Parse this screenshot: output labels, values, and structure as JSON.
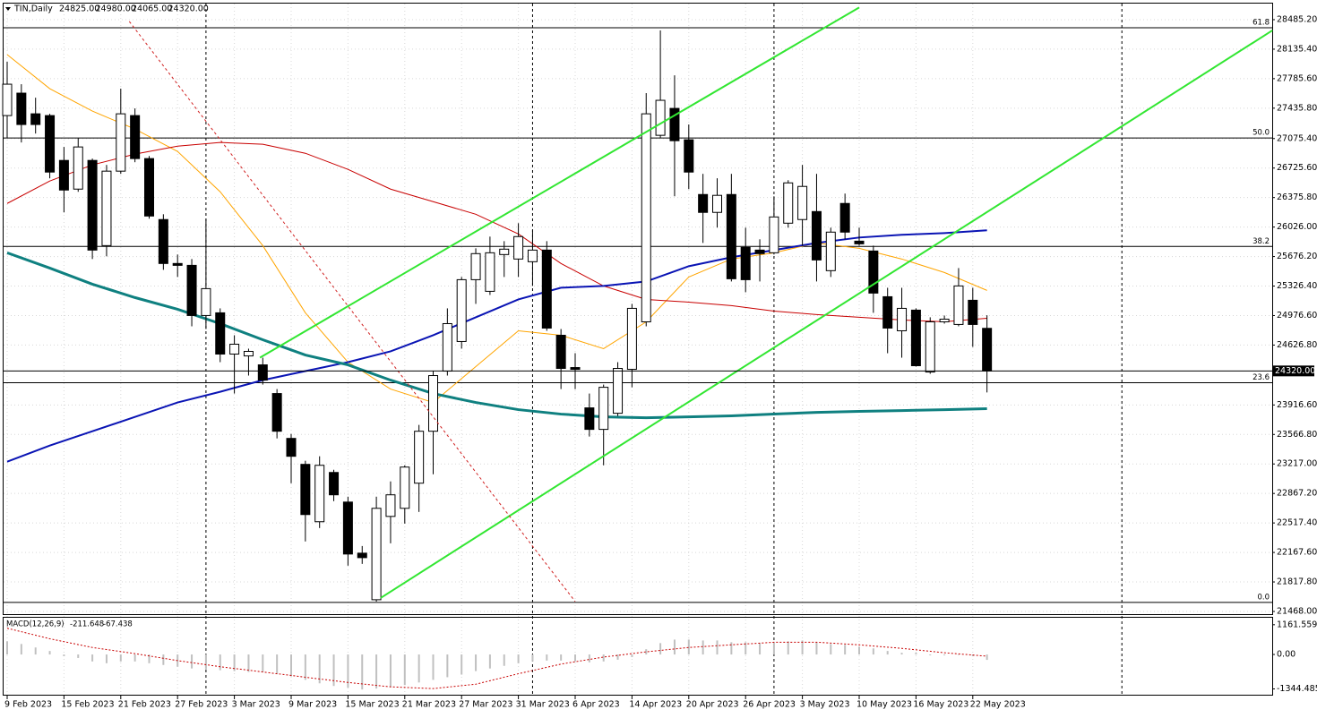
{
  "chart_data": [
    {
      "type": "candlestick",
      "symbol": "TIN,Daily",
      "header_values": [
        {
          "value": 24825,
          "label": "24825.00"
        },
        {
          "value": 24980,
          "label": "24980.00"
        },
        {
          "value": 24065,
          "label": "24065.00"
        },
        {
          "value": 24320,
          "label": "24320.00"
        }
      ],
      "categories": [
        "9 Feb 2023",
        null,
        null,
        null,
        "15 Feb 2023",
        null,
        null,
        null,
        "21 Feb 2023",
        null,
        null,
        null,
        "27 Feb 2023",
        null,
        null,
        null,
        "3 Mar 2023",
        null,
        null,
        null,
        "9 Mar 2023",
        null,
        null,
        null,
        "15 Mar 2023",
        null,
        null,
        null,
        "21 Mar 2023",
        null,
        null,
        null,
        "27 Mar 2023",
        null,
        null,
        null,
        "31 Mar 2023",
        null,
        null,
        null,
        "6 Apr 2023",
        null,
        null,
        null,
        "14 Apr 2023",
        null,
        null,
        null,
        "20 Apr 2023",
        null,
        null,
        null,
        "26 Apr 2023",
        null,
        null,
        null,
        "3 May 2023",
        null,
        null,
        null,
        "10 May 2023",
        null,
        null,
        null,
        "16 May 2023",
        null,
        null,
        null,
        "22 May 2023",
        null
      ],
      "open": [
        27348,
        27614,
        27369,
        27348,
        26816,
        26476,
        26816,
        25806,
        26689,
        27348,
        26838,
        26115,
        25594,
        25572,
        24977,
        25009,
        24520,
        24498,
        24392,
        24052,
        23520,
        23212,
        22532,
        23116,
        22765,
        22159,
        21607,
        22595,
        22691,
        22989,
        23605,
        24318,
        24669,
        25402,
        25264,
        25700,
        25647,
        25615,
        25753,
        24743,
        24360,
        23882,
        23627,
        23818,
        24339,
        24902,
        27114,
        27433,
        27061,
        26412,
        26200,
        26412,
        25785,
        25753,
        25721,
        26072,
        26115,
        26210,
        25509,
        26306,
        25859,
        25742,
        25200,
        24796,
        25041,
        24307,
        24902,
        24871,
        25158,
        24825
      ],
      "high": [
        27986,
        27720,
        27560,
        27369,
        26976,
        27082,
        26838,
        26763,
        27667,
        27433,
        26869,
        26178,
        25700,
        25647,
        26125,
        25062,
        24743,
        24584,
        24477,
        24105,
        23573,
        23255,
        23308,
        23148,
        22829,
        22244,
        22829,
        23010,
        23201,
        23680,
        24318,
        25062,
        25434,
        25774,
        25913,
        25859,
        26072,
        25987,
        25859,
        24817,
        24530,
        24052,
        24158,
        24424,
        25115,
        27614,
        28358,
        27826,
        27242,
        26657,
        26604,
        26657,
        26019,
        25881,
        26391,
        26582,
        26763,
        26657,
        26019,
        26423,
        26019,
        25806,
        25306,
        25306,
        25062,
        24956,
        24977,
        25540,
        25306,
        24980
      ],
      "low": [
        27082,
        27029,
        27135,
        26604,
        26200,
        26444,
        25647,
        25679,
        26657,
        26795,
        26125,
        25519,
        25434,
        24849,
        24817,
        24424,
        24052,
        24265,
        24158,
        23520,
        22989,
        22298,
        22457,
        22776,
        22011,
        22032,
        21585,
        22276,
        22510,
        22648,
        23095,
        24265,
        24584,
        25115,
        25221,
        25434,
        25434,
        25328,
        24796,
        24105,
        24105,
        23542,
        23201,
        23786,
        24126,
        24849,
        27082,
        26391,
        26476,
        25838,
        26019,
        25381,
        25253,
        25381,
        25700,
        26019,
        25806,
        25381,
        25434,
        25881,
        25806,
        25009,
        24530,
        24477,
        24371,
        24286,
        24881,
        24849,
        24605,
        24065
      ],
      "close": [
        27720,
        27242,
        27242,
        26678,
        26465,
        26976,
        25753,
        26689,
        27369,
        26838,
        26157,
        25594,
        25572,
        24977,
        25296,
        24520,
        24637,
        24552,
        24211,
        23605,
        23308,
        22617,
        23201,
        22851,
        22149,
        22106,
        22691,
        22851,
        23180,
        23605,
        24265,
        24881,
        25402,
        25711,
        25721,
        25764,
        25913,
        25753,
        24828,
        24350,
        24339,
        23627,
        24126,
        24350,
        25062,
        27369,
        27529,
        27050,
        26678,
        26200,
        26402,
        25413,
        25402,
        25711,
        26146,
        26550,
        26508,
        25636,
        25966,
        25966,
        25827,
        25243,
        24828,
        25062,
        24382,
        24902,
        24934,
        25328,
        24871,
        24320
      ],
      "overlays": [
        {
          "color": "#ffa500",
          "width": 1,
          "x": [
            0,
            3,
            6,
            9,
            12,
            15,
            18,
            21,
            24,
            27,
            30,
            33,
            36,
            39,
            42,
            45,
            48,
            51,
            54,
            57,
            60,
            63,
            66,
            69
          ],
          "values": [
            28071,
            27667,
            27401,
            27188,
            26923,
            26444,
            25806,
            25009,
            24424,
            24105,
            23946,
            24371,
            24796,
            24743,
            24584,
            24902,
            25434,
            25647,
            25721,
            25838,
            25774,
            25647,
            25487,
            25275
          ]
        },
        {
          "color": "#c80000",
          "width": 1,
          "x": [
            0,
            3,
            6,
            9,
            12,
            15,
            18,
            21,
            24,
            27,
            30,
            33,
            36,
            39,
            42,
            45,
            48,
            51,
            54,
            57,
            60,
            63,
            66,
            69
          ],
          "values": [
            26306,
            26572,
            26763,
            26891,
            26986,
            27029,
            27008,
            26901,
            26710,
            26476,
            26327,
            26178,
            25944,
            25594,
            25328,
            25168,
            25136,
            25094,
            25030,
            24988,
            24956,
            24924,
            24903,
            24945
          ]
        },
        {
          "color": "#0a14b4",
          "width": 2,
          "x": [
            0,
            3,
            6,
            9,
            12,
            15,
            18,
            21,
            24,
            27,
            30,
            33,
            36,
            39,
            42,
            45,
            48,
            51,
            54,
            57,
            60,
            63,
            66,
            69
          ],
          "values": [
            23244,
            23435,
            23605,
            23775,
            23946,
            24073,
            24211,
            24318,
            24424,
            24552,
            24743,
            24956,
            25168,
            25307,
            25328,
            25381,
            25562,
            25668,
            25753,
            25838,
            25902,
            25934,
            25955,
            25987
          ]
        },
        {
          "color": "#0f8080",
          "width": 3,
          "x": [
            0,
            3,
            6,
            9,
            12,
            15,
            18,
            21,
            24,
            27,
            30,
            33,
            36,
            39,
            42,
            45,
            48,
            51,
            54,
            57,
            60,
            63,
            66,
            69
          ],
          "values": [
            25721,
            25540,
            25349,
            25190,
            25051,
            24881,
            24690,
            24509,
            24392,
            24211,
            24052,
            23946,
            23861,
            23808,
            23776,
            23765,
            23776,
            23787,
            23808,
            23829,
            23840,
            23850,
            23861,
            23872
          ]
        }
      ],
      "trendlines": [
        {
          "color": "#32e632",
          "width": 2,
          "dash": false,
          "x": [
            17.8,
            60
          ],
          "values": [
            24477,
            28630
          ]
        },
        {
          "color": "#32e632",
          "width": 2,
          "dash": false,
          "x": [
            26.3,
            89.1
          ],
          "values": [
            21628,
            28358
          ]
        },
        {
          "color": "#d02020",
          "width": 1,
          "dash": true,
          "x": [
            8.6,
            40
          ],
          "values": [
            28464,
            21585
          ]
        }
      ],
      "fib_levels": [
        {
          "label": "61.8",
          "price": 28390
        },
        {
          "label": "50.0",
          "price": 27082
        },
        {
          "label": "38.2",
          "price": 25796
        },
        {
          "label": "23.6",
          "price": 24180
        },
        {
          "label": "0.0",
          "price": 21575
        }
      ],
      "separators": [
        14,
        37,
        54,
        78.5
      ],
      "last_price": {
        "value": 24320,
        "label": "24320.00"
      },
      "ylim": [
        21436,
        28676
      ],
      "yticks": [
        {
          "value": 28485.2,
          "label": "28485.20"
        },
        {
          "value": 28135.4,
          "label": "28135.40"
        },
        {
          "value": 27785.6,
          "label": "27785.60"
        },
        {
          "value": 27435.8,
          "label": "27435.80"
        },
        {
          "value": 27075.4,
          "label": "27075.40"
        },
        {
          "value": 26725.6,
          "label": "26725.60"
        },
        {
          "value": 26375.8,
          "label": "26375.80"
        },
        {
          "value": 26026,
          "label": "26026.00"
        },
        {
          "value": 25676.2,
          "label": "25676.20"
        },
        {
          "value": 25326.4,
          "label": "25326.40"
        },
        {
          "value": 24976.6,
          "label": "24976.60"
        },
        {
          "value": 24626.8,
          "label": "24626.80"
        },
        {
          "value": 23916.6,
          "label": "23916.60"
        },
        {
          "value": 23566.8,
          "label": "23566.80"
        },
        {
          "value": 23217,
          "label": "23217.00"
        },
        {
          "value": 22867.2,
          "label": "22867.20"
        },
        {
          "value": 22517.4,
          "label": "22517.40"
        },
        {
          "value": 22167.6,
          "label": "22167.60"
        },
        {
          "value": 21817.8,
          "label": "21817.80"
        },
        {
          "value": 21468,
          "label": "21468.00"
        }
      ],
      "grid": true
    },
    {
      "type": "macd",
      "title": "MACD(12,26,9)",
      "header_values": [
        -211.648,
        -67.438
      ],
      "color": "#c0c0c0",
      "values": [
        512,
        410,
        273,
        137,
        -68,
        -137,
        -273,
        -342,
        -273,
        -273,
        -342,
        -410,
        -478,
        -547,
        -581,
        -615,
        -649,
        -683,
        -683,
        -752,
        -854,
        -991,
        -1127,
        -1230,
        -1298,
        -1366,
        -1332,
        -1264,
        -1196,
        -1093,
        -991,
        -888,
        -786,
        -649,
        -547,
        -444,
        -342,
        -273,
        -239,
        -239,
        -273,
        -307,
        -273,
        -205,
        -102,
        205,
        444,
        581,
        581,
        547,
        547,
        478,
        478,
        444,
        478,
        512,
        547,
        478,
        410,
        376,
        307,
        239,
        137,
        68,
        68,
        -34,
        -34,
        -20,
        -68,
        -211.648
      ],
      "signal": {
        "color": "#c80000",
        "x": [
          0,
          3,
          6,
          9,
          12,
          15,
          18,
          21,
          24,
          27,
          30,
          33,
          36,
          39,
          42,
          45,
          48,
          51,
          54,
          57,
          60,
          63,
          66,
          69
        ],
        "values": [
          1025,
          615,
          273,
          34,
          -239,
          -478,
          -683,
          -888,
          -1093,
          -1264,
          -1332,
          -1161,
          -752,
          -376,
          -102,
          102,
          273,
          376,
          478,
          478,
          376,
          239,
          68,
          -67.438
        ]
      },
      "ylim": [
        -1572,
        1435
      ],
      "yticks": [
        1161.559,
        {
          "value": 0,
          "label": "0.00"
        },
        -1344.485
      ]
    }
  ]
}
